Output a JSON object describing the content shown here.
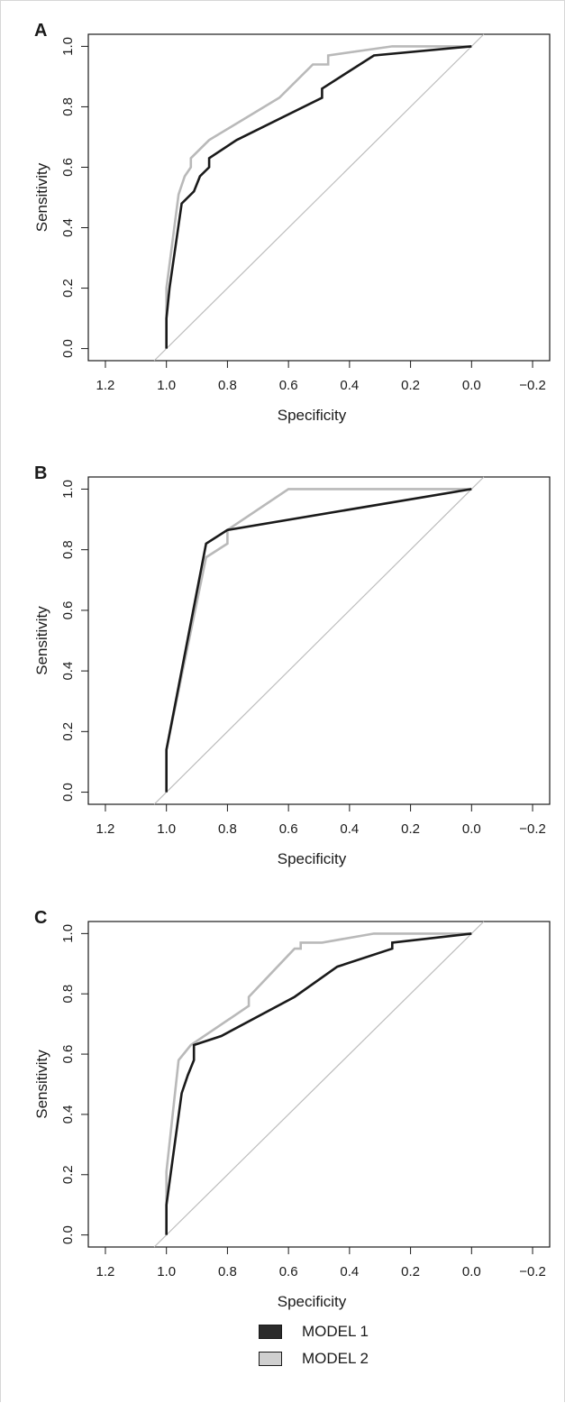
{
  "chart_data": [
    {
      "type": "line",
      "panel_label": "A",
      "xlabel": "Specificity",
      "ylabel": "Sensitivity",
      "x_reversed": true,
      "xlim": [
        1.2,
        -0.2
      ],
      "ylim": [
        0,
        1
      ],
      "xticks": [
        "1.2",
        "1.0",
        "0.8",
        "0.6",
        "0.4",
        "0.2",
        "0.0",
        "−0.2"
      ],
      "yticks": [
        "0.0",
        "0.2",
        "0.4",
        "0.6",
        "0.8",
        "1.0"
      ],
      "series": [
        {
          "name": "MODEL 1",
          "color": "#1a1a1a",
          "x": [
            1.0,
            1.0,
            0.99,
            0.95,
            0.93,
            0.91,
            0.89,
            0.86,
            0.86,
            0.77,
            0.49,
            0.49,
            0.32,
            0.0
          ],
          "y": [
            0.0,
            0.1,
            0.2,
            0.48,
            0.5,
            0.52,
            0.57,
            0.6,
            0.63,
            0.69,
            0.83,
            0.86,
            0.97,
            1.0
          ]
        },
        {
          "name": "MODEL 2",
          "color": "#b9b9b9",
          "x": [
            1.0,
            1.0,
            0.96,
            0.94,
            0.92,
            0.92,
            0.86,
            0.63,
            0.52,
            0.47,
            0.47,
            0.26,
            0.0
          ],
          "y": [
            0.0,
            0.2,
            0.51,
            0.57,
            0.6,
            0.63,
            0.69,
            0.83,
            0.94,
            0.94,
            0.97,
            1.0,
            1.0
          ]
        }
      ]
    },
    {
      "type": "line",
      "panel_label": "B",
      "xlabel": "Specificity",
      "ylabel": "Sensitivity",
      "x_reversed": true,
      "xlim": [
        1.2,
        -0.2
      ],
      "ylim": [
        0,
        1
      ],
      "xticks": [
        "1.2",
        "1.0",
        "0.8",
        "0.6",
        "0.4",
        "0.2",
        "0.0",
        "−0.2"
      ],
      "yticks": [
        "0.0",
        "0.2",
        "0.4",
        "0.6",
        "0.8",
        "1.0"
      ],
      "series": [
        {
          "name": "MODEL 1",
          "color": "#1a1a1a",
          "x": [
            1.0,
            1.0,
            0.87,
            0.8,
            0.0
          ],
          "y": [
            0.0,
            0.14,
            0.82,
            0.865,
            1.0
          ]
        },
        {
          "name": "MODEL 2",
          "color": "#b9b9b9",
          "x": [
            1.0,
            1.0,
            0.87,
            0.8,
            0.8,
            0.6,
            0.0
          ],
          "y": [
            0.0,
            0.14,
            0.775,
            0.82,
            0.865,
            1.0,
            1.0
          ]
        }
      ]
    },
    {
      "type": "line",
      "panel_label": "C",
      "xlabel": "Specificity",
      "ylabel": "Sensitivity",
      "x_reversed": true,
      "xlim": [
        1.2,
        -0.2
      ],
      "ylim": [
        0,
        1
      ],
      "xticks": [
        "1.2",
        "1.0",
        "0.8",
        "0.6",
        "0.4",
        "0.2",
        "0.0",
        "−0.2"
      ],
      "yticks": [
        "0.0",
        "0.2",
        "0.4",
        "0.6",
        "0.8",
        "1.0"
      ],
      "series": [
        {
          "name": "MODEL 1",
          "color": "#1a1a1a",
          "x": [
            1.0,
            1.0,
            0.95,
            0.93,
            0.91,
            0.91,
            0.82,
            0.58,
            0.44,
            0.26,
            0.26,
            0.0
          ],
          "y": [
            0.0,
            0.1,
            0.47,
            0.53,
            0.58,
            0.63,
            0.66,
            0.79,
            0.89,
            0.95,
            0.97,
            1.0
          ]
        },
        {
          "name": "MODEL 2",
          "color": "#b9b9b9",
          "x": [
            1.0,
            1.0,
            0.96,
            0.92,
            0.73,
            0.73,
            0.58,
            0.56,
            0.56,
            0.49,
            0.32,
            0.0
          ],
          "y": [
            0.0,
            0.21,
            0.58,
            0.63,
            0.76,
            0.79,
            0.95,
            0.95,
            0.97,
            0.97,
            1.0,
            1.0
          ]
        }
      ]
    }
  ],
  "legend": {
    "placement": "bottom-center",
    "items": [
      {
        "label": "MODEL 1",
        "color": "#2b2b2b"
      },
      {
        "label": "MODEL 2",
        "color": "#cfcfcf"
      }
    ]
  }
}
